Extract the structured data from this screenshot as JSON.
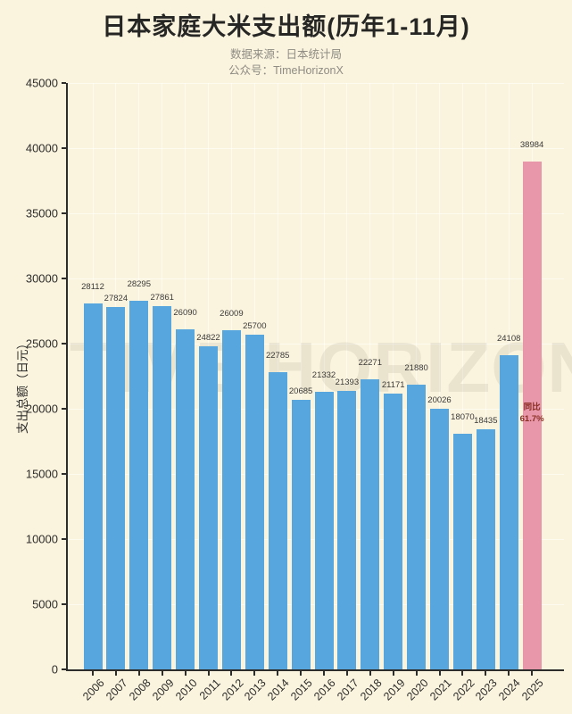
{
  "page": {
    "background_color": "#faf3de"
  },
  "header": {
    "title": "日本家庭大米支出额(历年1-11月)",
    "subtitle_line1": "数据来源：日本统计局",
    "subtitle_line2": "公众号：TimeHorizonX"
  },
  "watermark_text": "TIME HORIZON",
  "colors": {
    "background": "#faf3de",
    "bar": "#57a7de",
    "highlight_bar": "#e897ab",
    "axis": "#2d2d2b",
    "title_text": "#262624",
    "subtitle_text": "#8f8c84",
    "value_label_text": "#3a3a38",
    "annotation_text": "#8a2f23",
    "gridline": "rgba(255,255,255,0.55)",
    "watermark": "rgba(95,85,60,0.10)"
  },
  "chart_data": {
    "type": "bar",
    "title": "日本家庭大米支出额(历年1-11月)",
    "categories": [
      "2006",
      "2007",
      "2008",
      "2009",
      "2010",
      "2011",
      "2012",
      "2013",
      "2014",
      "2015",
      "2016",
      "2017",
      "2018",
      "2019",
      "2020",
      "2021",
      "2022",
      "2023",
      "2024",
      "2025"
    ],
    "values": [
      28112,
      27824,
      28295,
      27861,
      26090,
      24822,
      26009,
      25700,
      22785,
      20685,
      21332,
      21393,
      22271,
      21171,
      21880,
      20026,
      18070,
      18435,
      24108,
      38984
    ],
    "xlabel": "",
    "ylabel": "支出总额（日元）",
    "ylim": [
      0,
      45000
    ],
    "ytick_step": 5000,
    "grid": true,
    "legend": "none",
    "highlight": {
      "index": 19,
      "category": "2025",
      "value": 38984,
      "annotation_line1": "同比",
      "annotation_line2": "61.7%"
    }
  }
}
